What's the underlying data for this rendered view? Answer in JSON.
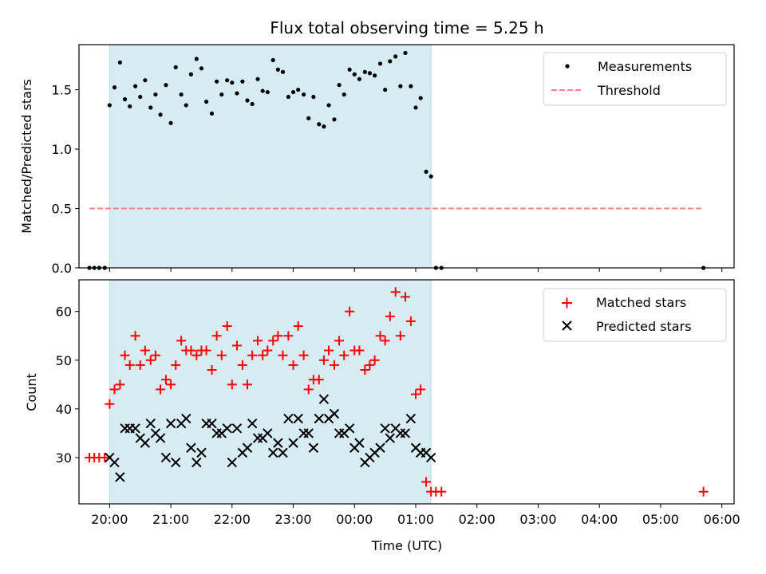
{
  "chart_data": [
    {
      "type": "scatter",
      "title": "Flux total observing time = 5.25 h",
      "ylabel": "Matched/Predicted stars",
      "ylim": [
        0,
        1.88
      ],
      "yticks": [
        "0.0",
        "0.5",
        "1.0",
        "1.5"
      ],
      "ytick_values": [
        0,
        0.5,
        1.0,
        1.5
      ],
      "xlim": [
        -0.5,
        10.2
      ],
      "shaded_span": [
        0.0,
        5.25
      ],
      "legend_position": "top-right",
      "series": [
        {
          "name": "Measurements",
          "marker": "dot",
          "color": "#000000",
          "points": [
            [
              -0.33,
              0
            ],
            [
              -0.25,
              0
            ],
            [
              -0.17,
              0
            ],
            [
              -0.08,
              0
            ],
            [
              0.0,
              1.37
            ],
            [
              0.08,
              1.52
            ],
            [
              0.17,
              1.73
            ],
            [
              0.25,
              1.42
            ],
            [
              0.33,
              1.36
            ],
            [
              0.42,
              1.53
            ],
            [
              0.5,
              1.44
            ],
            [
              0.58,
              1.58
            ],
            [
              0.67,
              1.35
            ],
            [
              0.75,
              1.46
            ],
            [
              0.83,
              1.29
            ],
            [
              0.92,
              1.54
            ],
            [
              1.0,
              1.22
            ],
            [
              1.08,
              1.69
            ],
            [
              1.17,
              1.46
            ],
            [
              1.25,
              1.37
            ],
            [
              1.33,
              1.63
            ],
            [
              1.42,
              1.76
            ],
            [
              1.5,
              1.68
            ],
            [
              1.58,
              1.4
            ],
            [
              1.67,
              1.3
            ],
            [
              1.75,
              1.57
            ],
            [
              1.83,
              1.46
            ],
            [
              1.92,
              1.58
            ],
            [
              2.0,
              1.56
            ],
            [
              2.08,
              1.47
            ],
            [
              2.17,
              1.57
            ],
            [
              2.25,
              1.41
            ],
            [
              2.33,
              1.38
            ],
            [
              2.42,
              1.59
            ],
            [
              2.5,
              1.49
            ],
            [
              2.58,
              1.48
            ],
            [
              2.67,
              1.75
            ],
            [
              2.75,
              1.67
            ],
            [
              2.83,
              1.65
            ],
            [
              2.92,
              1.44
            ],
            [
              3.0,
              1.48
            ],
            [
              3.08,
              1.5
            ],
            [
              3.17,
              1.46
            ],
            [
              3.25,
              1.26
            ],
            [
              3.33,
              1.44
            ],
            [
              3.42,
              1.21
            ],
            [
              3.5,
              1.19
            ],
            [
              3.58,
              1.37
            ],
            [
              3.67,
              1.25
            ],
            [
              3.75,
              1.54
            ],
            [
              3.83,
              1.46
            ],
            [
              3.92,
              1.67
            ],
            [
              4.0,
              1.63
            ],
            [
              4.08,
              1.59
            ],
            [
              4.17,
              1.65
            ],
            [
              4.25,
              1.64
            ],
            [
              4.33,
              1.62
            ],
            [
              4.42,
              1.72
            ],
            [
              4.5,
              1.5
            ],
            [
              4.58,
              1.74
            ],
            [
              4.67,
              1.78
            ],
            [
              4.75,
              1.53
            ],
            [
              4.83,
              1.81
            ],
            [
              4.92,
              1.53
            ],
            [
              5.0,
              1.35
            ],
            [
              5.08,
              1.43
            ],
            [
              5.17,
              0.81
            ],
            [
              5.25,
              0.77
            ],
            [
              5.33,
              0
            ],
            [
              5.42,
              0
            ],
            [
              9.7,
              0
            ]
          ]
        },
        {
          "name": "Threshold",
          "style": "dashed",
          "color": "#ff7f7f",
          "x_range": [
            -0.33,
            9.7
          ],
          "y": 0.5
        }
      ]
    },
    {
      "type": "scatter",
      "xlabel": "Time (UTC)",
      "ylabel": "Count",
      "ylim": [
        20.5,
        66.5
      ],
      "yticks": [
        "30",
        "40",
        "50",
        "60"
      ],
      "ytick_values": [
        30,
        40,
        50,
        60
      ],
      "xlim": [
        -0.5,
        10.2
      ],
      "xticks": [
        "20:00",
        "21:00",
        "22:00",
        "23:00",
        "00:00",
        "01:00",
        "02:00",
        "03:00",
        "04:00",
        "05:00",
        "06:00"
      ],
      "xtick_values": [
        0,
        1,
        2,
        3,
        4,
        5,
        6,
        7,
        8,
        9,
        10
      ],
      "shaded_span": [
        0.0,
        5.25
      ],
      "legend_position": "top-right",
      "series": [
        {
          "name": "Matched stars",
          "marker": "plus",
          "color": "#ff0000",
          "points": [
            [
              -0.33,
              30
            ],
            [
              -0.25,
              30
            ],
            [
              -0.17,
              30
            ],
            [
              -0.08,
              30
            ],
            [
              0.0,
              41
            ],
            [
              0.08,
              44
            ],
            [
              0.17,
              45
            ],
            [
              0.25,
              51
            ],
            [
              0.33,
              49
            ],
            [
              0.42,
              55
            ],
            [
              0.5,
              49
            ],
            [
              0.58,
              52
            ],
            [
              0.67,
              50
            ],
            [
              0.75,
              51
            ],
            [
              0.83,
              44
            ],
            [
              0.92,
              46
            ],
            [
              1.0,
              45
            ],
            [
              1.08,
              49
            ],
            [
              1.17,
              54
            ],
            [
              1.25,
              52
            ],
            [
              1.33,
              52
            ],
            [
              1.42,
              51
            ],
            [
              1.5,
              52
            ],
            [
              1.58,
              52
            ],
            [
              1.67,
              48
            ],
            [
              1.75,
              55
            ],
            [
              1.83,
              51
            ],
            [
              1.92,
              57
            ],
            [
              2.0,
              45
            ],
            [
              2.08,
              53
            ],
            [
              2.17,
              49
            ],
            [
              2.25,
              45
            ],
            [
              2.33,
              51
            ],
            [
              2.42,
              54
            ],
            [
              2.5,
              51
            ],
            [
              2.58,
              52
            ],
            [
              2.67,
              54
            ],
            [
              2.75,
              55
            ],
            [
              2.83,
              51
            ],
            [
              2.92,
              55
            ],
            [
              3.0,
              49
            ],
            [
              3.08,
              57
            ],
            [
              3.17,
              51
            ],
            [
              3.25,
              44
            ],
            [
              3.33,
              46
            ],
            [
              3.42,
              46
            ],
            [
              3.5,
              50
            ],
            [
              3.58,
              52
            ],
            [
              3.67,
              49
            ],
            [
              3.75,
              54
            ],
            [
              3.83,
              51
            ],
            [
              3.92,
              60
            ],
            [
              4.0,
              52
            ],
            [
              4.08,
              52
            ],
            [
              4.17,
              48
            ],
            [
              4.25,
              49
            ],
            [
              4.33,
              50
            ],
            [
              4.42,
              55
            ],
            [
              4.5,
              54
            ],
            [
              4.58,
              59
            ],
            [
              4.67,
              64
            ],
            [
              4.75,
              55
            ],
            [
              4.83,
              63
            ],
            [
              4.92,
              58
            ],
            [
              5.0,
              43
            ],
            [
              5.08,
              44
            ],
            [
              5.17,
              25
            ],
            [
              5.25,
              23
            ],
            [
              5.33,
              23
            ],
            [
              5.42,
              23
            ],
            [
              9.7,
              23
            ]
          ]
        },
        {
          "name": "Predicted stars",
          "marker": "x",
          "color": "#000000",
          "points": [
            [
              0.0,
              30
            ],
            [
              0.08,
              29
            ],
            [
              0.17,
              26
            ],
            [
              0.25,
              36
            ],
            [
              0.33,
              36
            ],
            [
              0.42,
              36
            ],
            [
              0.5,
              34
            ],
            [
              0.58,
              33
            ],
            [
              0.67,
              37
            ],
            [
              0.75,
              35
            ],
            [
              0.83,
              34
            ],
            [
              0.92,
              30
            ],
            [
              1.0,
              37
            ],
            [
              1.08,
              29
            ],
            [
              1.17,
              37
            ],
            [
              1.25,
              38
            ],
            [
              1.33,
              32
            ],
            [
              1.42,
              29
            ],
            [
              1.5,
              31
            ],
            [
              1.58,
              37
            ],
            [
              1.67,
              37
            ],
            [
              1.75,
              35
            ],
            [
              1.83,
              35
            ],
            [
              1.92,
              36
            ],
            [
              2.0,
              29
            ],
            [
              2.08,
              36
            ],
            [
              2.17,
              31
            ],
            [
              2.25,
              32
            ],
            [
              2.33,
              37
            ],
            [
              2.42,
              34
            ],
            [
              2.5,
              34
            ],
            [
              2.58,
              35
            ],
            [
              2.67,
              31
            ],
            [
              2.75,
              33
            ],
            [
              2.83,
              31
            ],
            [
              2.92,
              38
            ],
            [
              3.0,
              33
            ],
            [
              3.08,
              38
            ],
            [
              3.17,
              35
            ],
            [
              3.25,
              35
            ],
            [
              3.33,
              32
            ],
            [
              3.42,
              38
            ],
            [
              3.5,
              42
            ],
            [
              3.58,
              38
            ],
            [
              3.67,
              39
            ],
            [
              3.75,
              35
            ],
            [
              3.83,
              35
            ],
            [
              3.92,
              36
            ],
            [
              4.0,
              32
            ],
            [
              4.08,
              33
            ],
            [
              4.17,
              29
            ],
            [
              4.25,
              30
            ],
            [
              4.33,
              31
            ],
            [
              4.42,
              32
            ],
            [
              4.5,
              36
            ],
            [
              4.58,
              34
            ],
            [
              4.67,
              36
            ],
            [
              4.75,
              35
            ],
            [
              4.83,
              35
            ],
            [
              4.92,
              38
            ],
            [
              5.0,
              32
            ],
            [
              5.08,
              31
            ],
            [
              5.17,
              31
            ],
            [
              5.25,
              30
            ]
          ]
        }
      ]
    }
  ],
  "colors": {
    "shade": "#add8e6",
    "axis": "#000000"
  }
}
